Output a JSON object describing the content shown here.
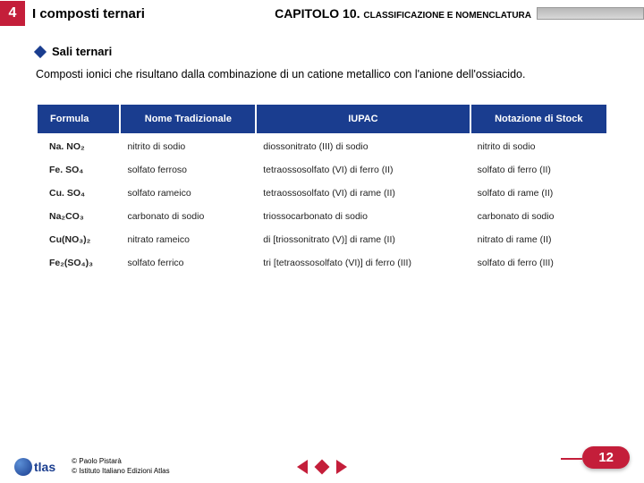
{
  "header": {
    "section_number": "4",
    "section_title": "I composti ternari",
    "chapter_label": "CAPITOLO 10.",
    "chapter_subtitle": "CLASSIFICAZIONE E NOMENCLATURA"
  },
  "bullet_title": "Sali ternari",
  "intro_text": "Composti ionici che risultano dalla combinazione di un catione metallico con l'anione dell'ossiacido.",
  "table": {
    "columns": [
      "Formula",
      "Nome Tradizionale",
      "IUPAC",
      "Notazione di Stock"
    ],
    "col_align": [
      "left",
      "left",
      "left",
      "left"
    ],
    "header_bg": "#1a3d8f",
    "header_fg": "#ffffff",
    "rows": [
      [
        "Na. NO₂",
        "nitrito di sodio",
        "diossonitrato (III) di sodio",
        "nitrito di sodio"
      ],
      [
        "Fe. SO₄",
        "solfato ferroso",
        "tetraossosolfato (VI) di ferro (II)",
        "solfato di ferro (II)"
      ],
      [
        "Cu. SO₄",
        "solfato rameico",
        "tetraossosolfato (VI) di rame (II)",
        "solfato di rame (II)"
      ],
      [
        "Na₂CO₃",
        "carbonato di sodio",
        "triossocarbonato di sodio",
        "carbonato di sodio"
      ],
      [
        "Cu(NO₃)₂",
        "nitrato rameico",
        "di [triossonitrato (V)] di rame (II)",
        "nitrato di rame (II)"
      ],
      [
        "Fe₂(SO₄)₃",
        "solfato ferrico",
        "tri [tetraossosolfato (VI)] di ferro (III)",
        "solfato di ferro (III)"
      ]
    ]
  },
  "footer": {
    "logo_text": "tlas",
    "copyright_line1": "© Paolo Pistarà",
    "copyright_line2": "© Istituto Italiano Edizioni Atlas",
    "page_number": "12"
  },
  "colors": {
    "brand_red": "#c41e3a",
    "brand_blue": "#1a3d8f",
    "background": "#ffffff"
  }
}
